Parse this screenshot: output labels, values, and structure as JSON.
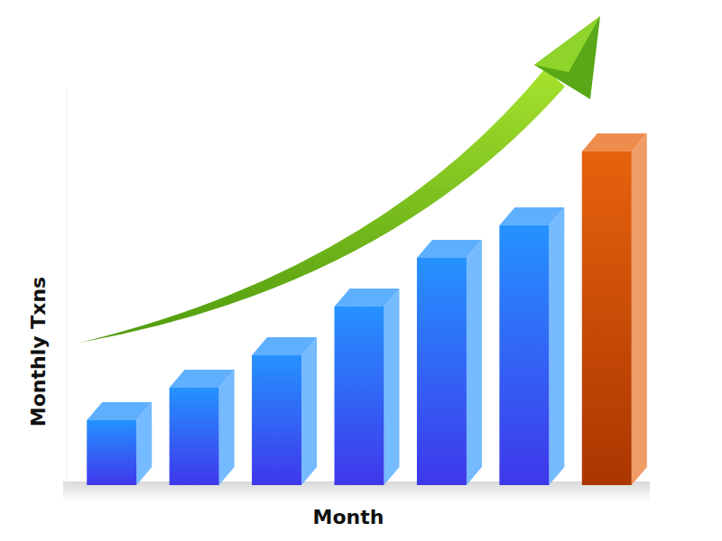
{
  "chart_data": {
    "type": "bar",
    "x_label": "Month",
    "y_label": "Monthly Txns",
    "categories": [
      null,
      null,
      null,
      null,
      null,
      null,
      null
    ],
    "values": [
      72,
      108,
      144,
      198,
      252,
      288,
      370
    ],
    "colors": [
      "#1a8cff",
      "#1a8cff",
      "#1a8cff",
      "#1a8cff",
      "#1a8cff",
      "#1a8cff",
      "#e65a00"
    ],
    "ylim": [
      0,
      440
    ],
    "tick_labels": false,
    "grid": false
  }
}
